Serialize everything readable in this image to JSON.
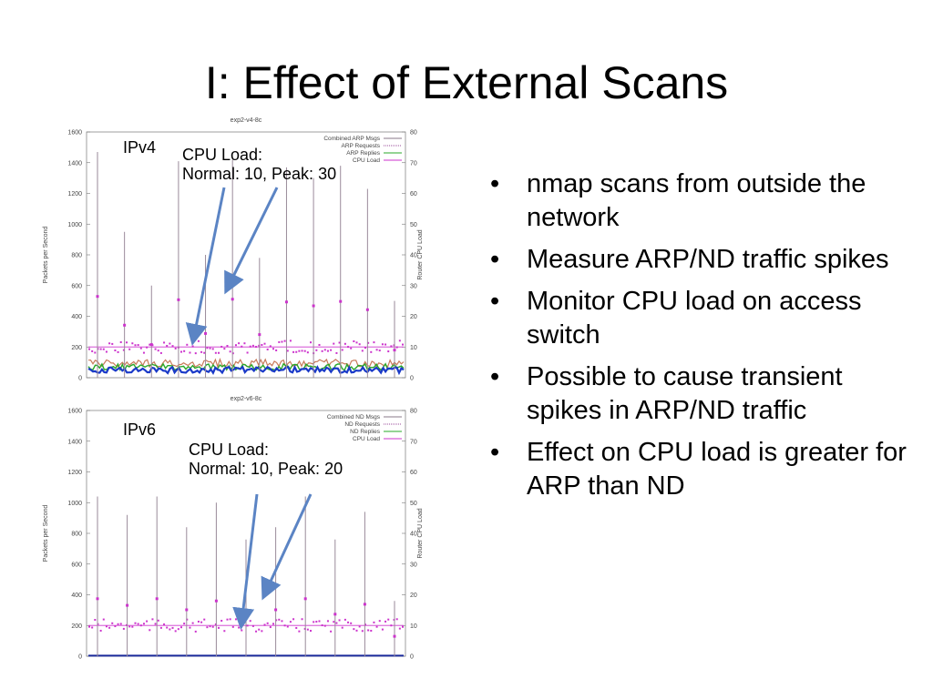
{
  "slide": {
    "title": "I: Effect of External Scans",
    "bullets": [
      "nmap scans from outside the network",
      "Measure ARP/ND traffic spikes",
      "Monitor CPU load on access switch",
      "Possible to cause transient spikes in ARP/ND traffic",
      "Effect on CPU load is greater for ARP than ND"
    ],
    "bullet_glyph": "•"
  },
  "chart_data": [
    {
      "type": "line",
      "title": "exp2-v4-8c",
      "ylabel": "Packets per Second",
      "y2label": "Router CPU Load",
      "ylim": [
        0,
        1600
      ],
      "y2lim": [
        0,
        80
      ],
      "yticks": [
        "0",
        "200",
        "400",
        "600",
        "800",
        "1000",
        "1200",
        "1400",
        "1600"
      ],
      "y2ticks": [
        "0",
        "10",
        "20",
        "30",
        "40",
        "50",
        "60",
        "70",
        "80"
      ],
      "legend_position": "top-right",
      "series": [
        {
          "name": "Combined ARP Msgs",
          "color": "#8a7a8a"
        },
        {
          "name": "ARP Requests",
          "color": "#9a4a9a"
        },
        {
          "name": "ARP Replies",
          "color": "#2aa82a"
        },
        {
          "name": "CPU Load",
          "color": "#cc33cc"
        }
      ],
      "spikes": [
        1470,
        950,
        600,
        1410,
        800,
        1420,
        780,
        1370,
        1300,
        1380,
        1230,
        500
      ],
      "baseline_cpu_load": 10,
      "peak_cpu_load": 30,
      "annotation_label": "IPv4",
      "annotation_line1": "CPU Load:",
      "annotation_line2": "Normal: 10, Peak: 30"
    },
    {
      "type": "line",
      "title": "exp2-v6-8c",
      "ylabel": "Packets per Second",
      "y2label": "Router CPU Load",
      "ylim": [
        0,
        1600
      ],
      "y2lim": [
        0,
        80
      ],
      "yticks": [
        "0",
        "200",
        "400",
        "600",
        "800",
        "1000",
        "1200",
        "1400",
        "1600"
      ],
      "y2ticks": [
        "0",
        "10",
        "20",
        "30",
        "40",
        "50",
        "60",
        "70",
        "80"
      ],
      "legend_position": "top-right",
      "series": [
        {
          "name": "Combined ND Msgs",
          "color": "#8a7a8a"
        },
        {
          "name": "ND Requests",
          "color": "#9a4a9a"
        },
        {
          "name": "ND Replies",
          "color": "#2aa82a"
        },
        {
          "name": "CPU Load",
          "color": "#cc33cc"
        }
      ],
      "spikes": [
        1040,
        920,
        1040,
        840,
        1000,
        760,
        840,
        1040,
        760,
        940,
        360
      ],
      "baseline_cpu_load": 10,
      "peak_cpu_load": 20,
      "annotation_label": "IPv6",
      "annotation_line1": "CPU Load:",
      "annotation_line2": "Normal: 10, Peak: 20"
    }
  ],
  "colors": {
    "arrow": "#5b84c4",
    "baseline": "#1a2a9a"
  }
}
